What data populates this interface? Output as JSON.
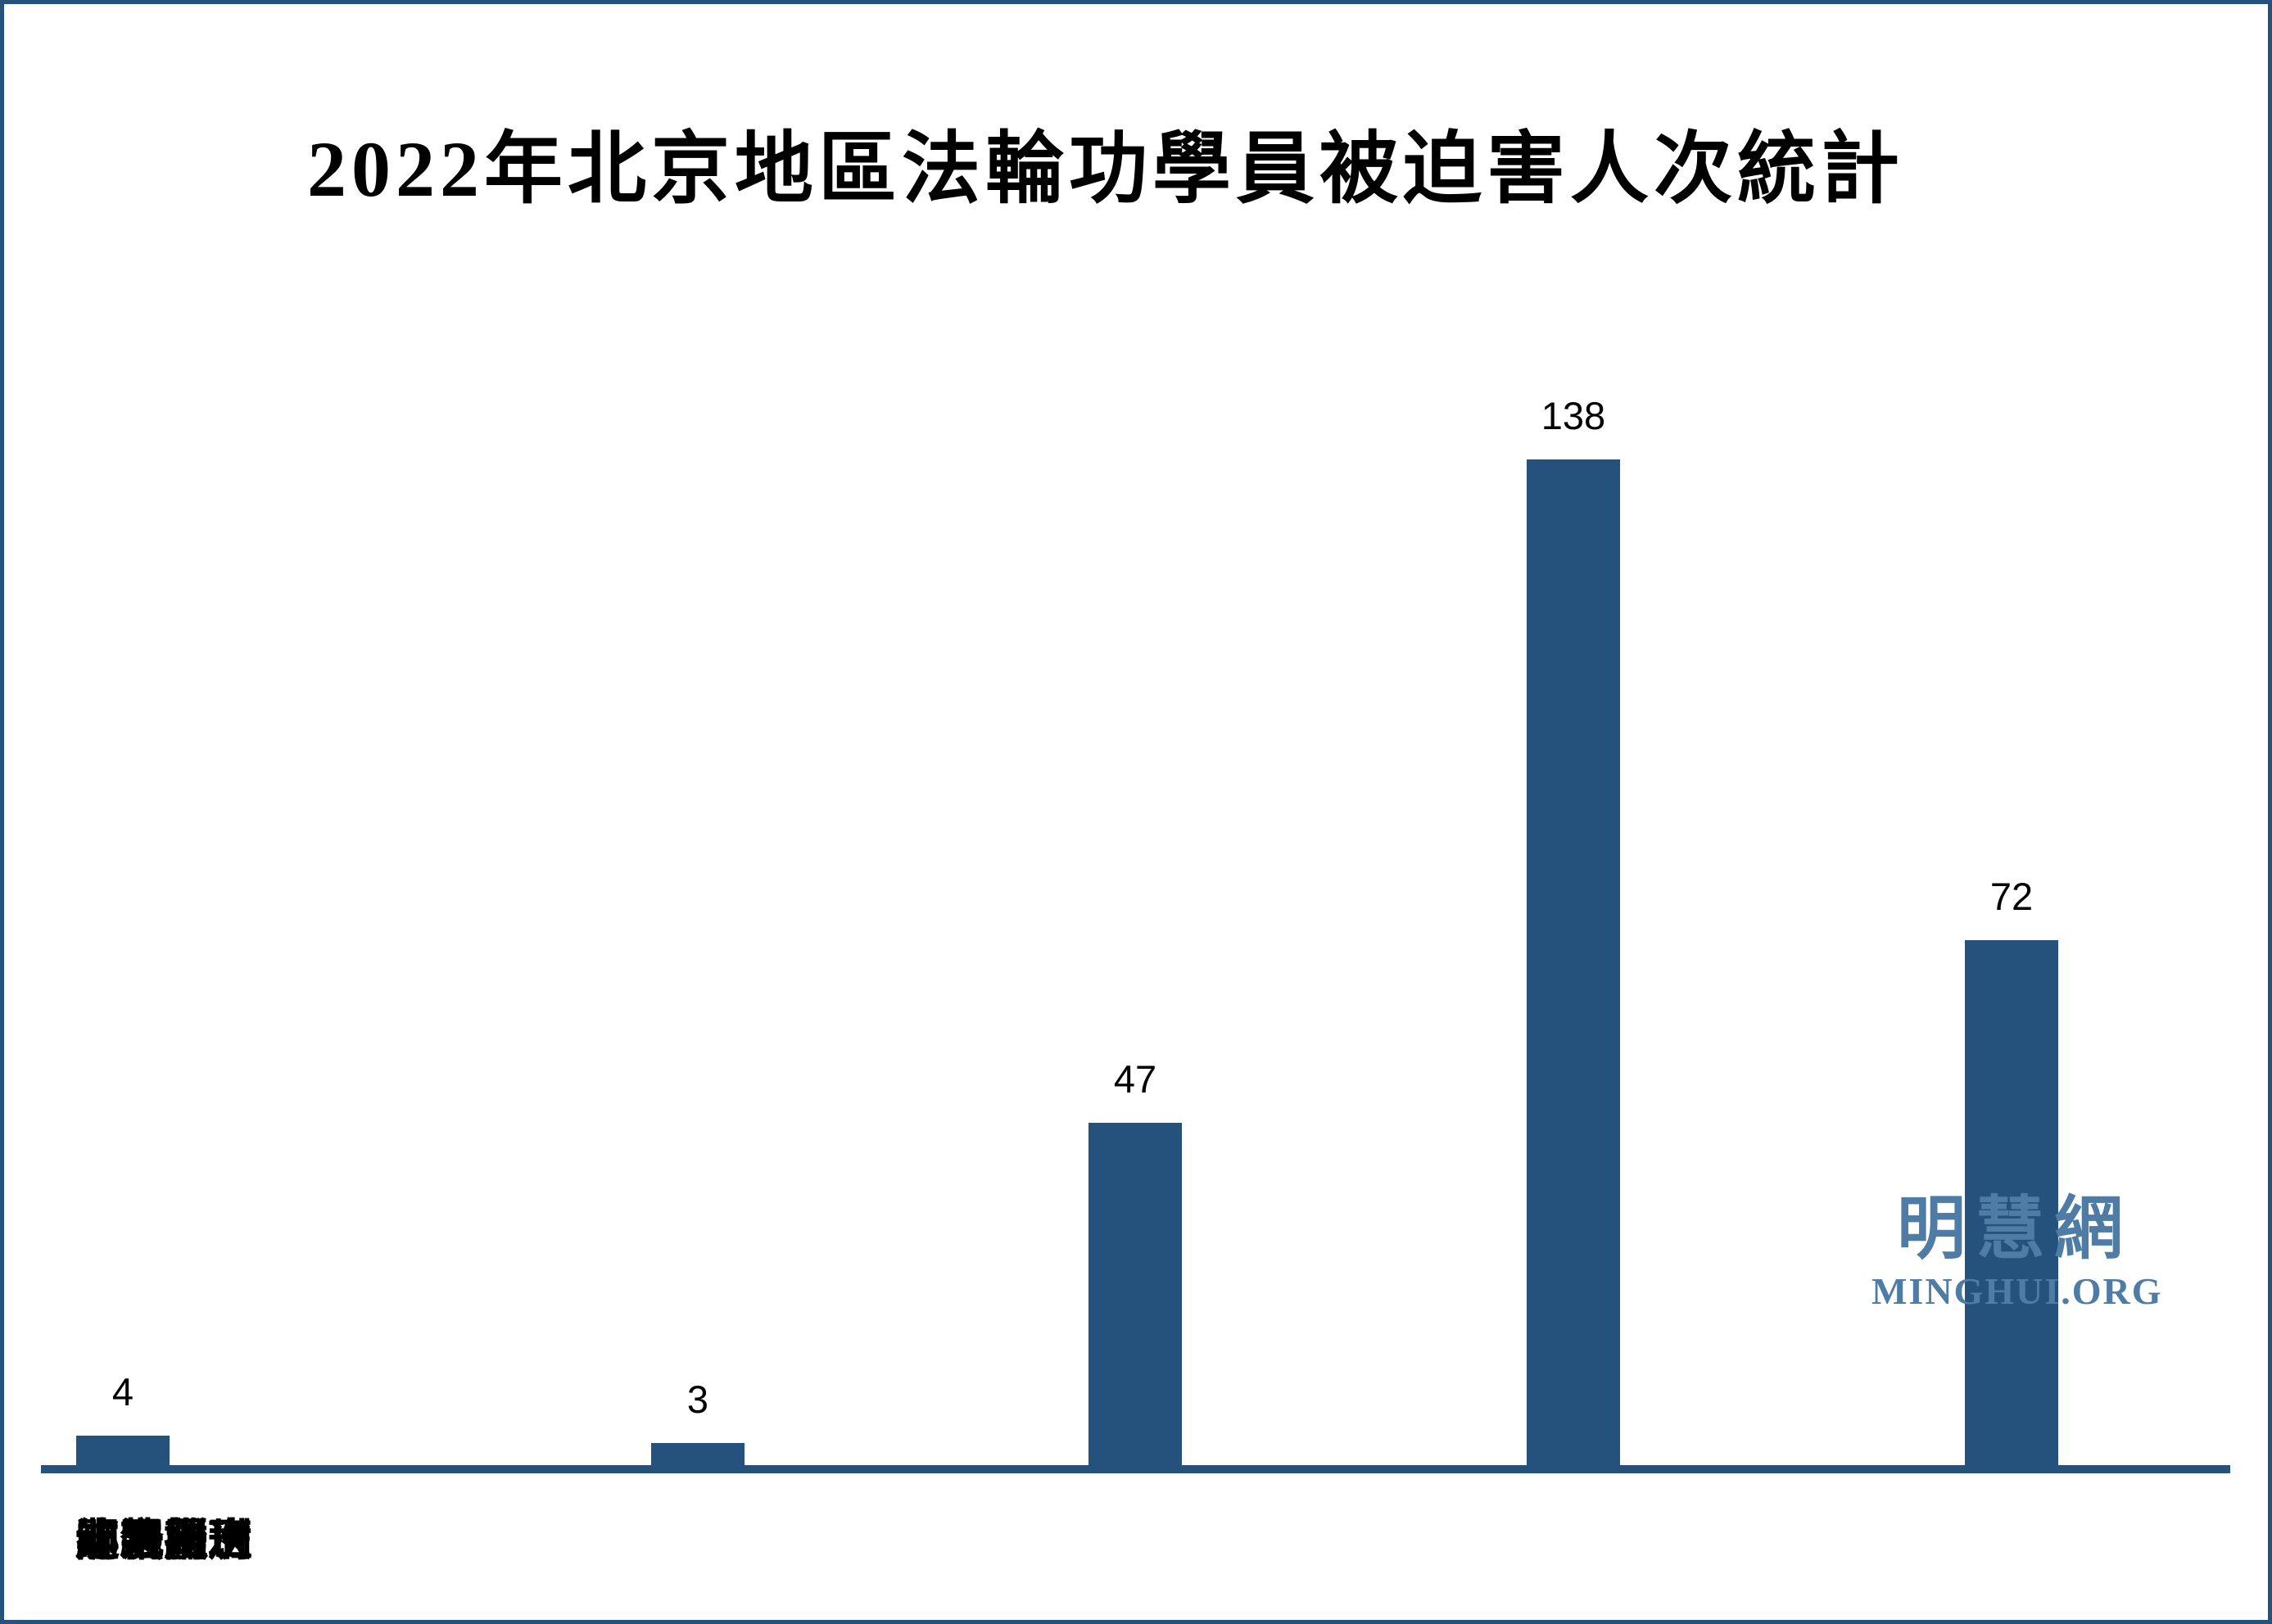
{
  "chart_data": {
    "type": "bar",
    "title": "2022年北京地區法輪功學員被迫害人次統計",
    "categories": [
      "迫害離世",
      "非法判刑",
      "綁架人次",
      "騷擾",
      "關洗腦班"
    ],
    "values": [
      3,
      47,
      138,
      72,
      4
    ],
    "xlabel": "",
    "ylabel": "",
    "ylim": [
      0,
      138
    ],
    "grid": false,
    "legend": "none",
    "value_labels_shown": true,
    "bar_color": "#24527C",
    "axis_color": "#24527C",
    "text_color": "#000000"
  },
  "frame": {
    "border_color": "#24527C"
  },
  "watermark": {
    "cjk_text": "明慧網",
    "latin_text": "MINGHUI.ORG",
    "color": "#4E7CA5"
  }
}
